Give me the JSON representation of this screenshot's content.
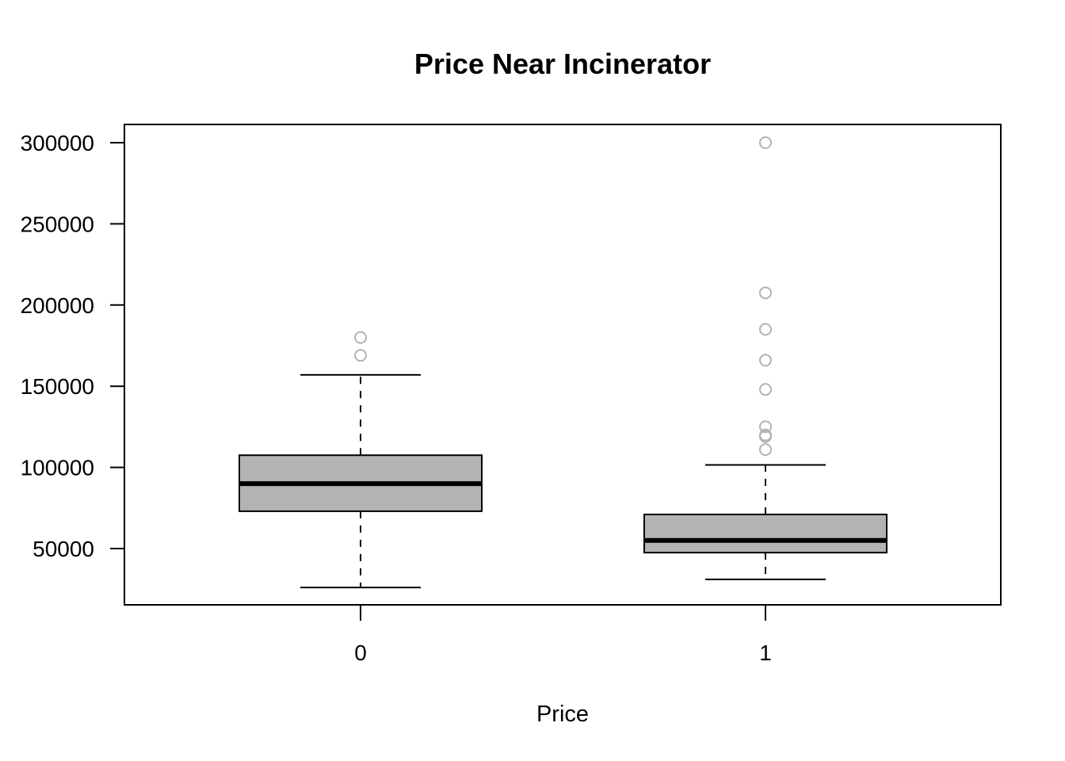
{
  "chart_data": {
    "type": "boxplot",
    "title": "Price Near Incinerator",
    "xlabel": "Price",
    "ylabel": "",
    "categories": [
      "0",
      "1"
    ],
    "ylim": [
      15000,
      310000
    ],
    "y_ticks": [
      50000,
      100000,
      150000,
      200000,
      250000,
      300000
    ],
    "box_fill": "#b3b3b3",
    "outlier_color": "#b3b3b3",
    "boxes": [
      {
        "category": "0",
        "whisker_low": 26000,
        "q1": 73000,
        "median": 90000,
        "q3": 107500,
        "whisker_high": 157000,
        "outliers": [
          169000,
          180000
        ]
      },
      {
        "category": "1",
        "whisker_low": 31000,
        "q1": 47500,
        "median": 55000,
        "q3": 71000,
        "whisker_high": 101500,
        "outliers": [
          111000,
          119000,
          120000,
          125000,
          148000,
          166000,
          185000,
          207500,
          300000
        ]
      }
    ]
  }
}
